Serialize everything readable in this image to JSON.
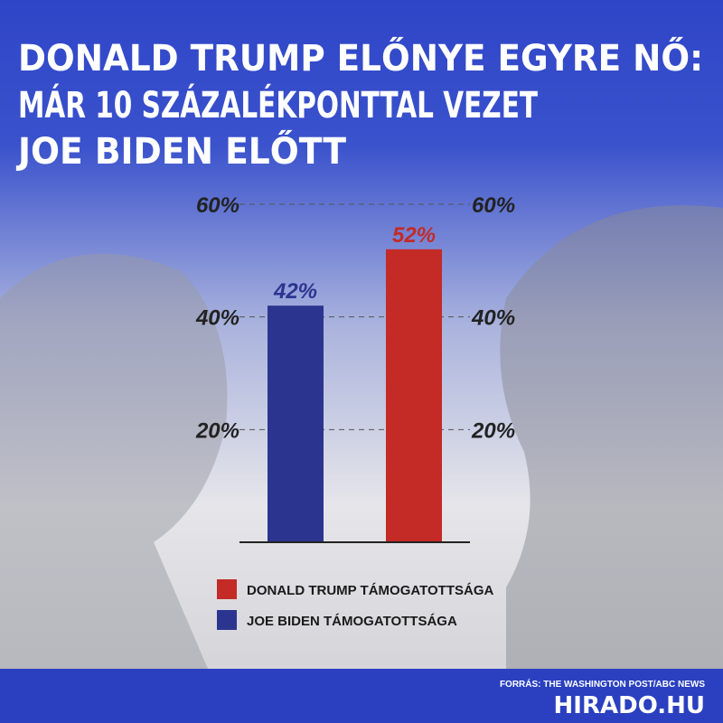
{
  "chart_data": {
    "type": "bar",
    "title": [
      "DONALD TRUMP ELŐNYE EGYRE NŐ:",
      "MÁR 10 SZÁZALÉKPONTTAL VEZET",
      "JOE BIDEN ELŐTT"
    ],
    "series": [
      {
        "name": "JOE BIDEN TÁMOGATOTTSÁGA",
        "color": "#2b3590",
        "values": [
          42
        ],
        "value_labels": [
          "42%"
        ]
      },
      {
        "name": "DONALD TRUMP TÁMOGATOTTSÁGA",
        "color": "#c42a26",
        "values": [
          52
        ],
        "value_labels": [
          "52%"
        ]
      }
    ],
    "ylim": [
      0,
      60
    ],
    "yticks": [
      {
        "value": 20,
        "label": "20%"
      },
      {
        "value": 40,
        "label": "40%"
      },
      {
        "value": 60,
        "label": "60%"
      }
    ],
    "grid": true,
    "source": "FORRÁS: THE WASHINGTON POST/ABC NEWS",
    "brand": "HIRADO.HU"
  }
}
